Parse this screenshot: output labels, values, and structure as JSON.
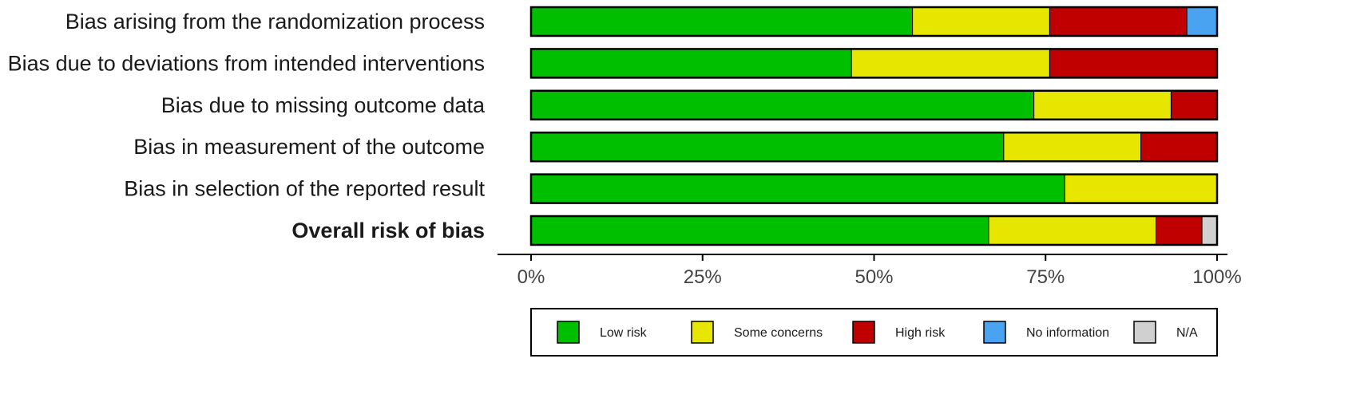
{
  "chart_data": {
    "type": "bar",
    "orientation": "horizontal",
    "stacked": true,
    "title": "",
    "xlabel": "",
    "ylabel": "",
    "xlim": [
      0,
      100
    ],
    "x_ticks": [
      "0%",
      "25%",
      "50%",
      "75%",
      "100%"
    ],
    "x_tick_values": [
      0,
      25,
      50,
      75,
      100
    ],
    "categories": [
      "Bias arising from the randomization process",
      "Bias due to deviations from intended interventions",
      "Bias due to missing outcome data",
      "Bias in measurement of the outcome",
      "Bias in selection of the reported result",
      "Overall risk of bias"
    ],
    "bold_category_index": 5,
    "series": [
      {
        "name": "Low risk",
        "color": "#00BF00",
        "values": [
          55.6,
          46.7,
          73.3,
          68.9,
          77.8,
          66.7
        ]
      },
      {
        "name": "Some concerns",
        "color": "#E6E600",
        "values": [
          20.0,
          28.9,
          20.0,
          20.0,
          22.2,
          24.4
        ]
      },
      {
        "name": "High risk",
        "color": "#C00000",
        "values": [
          20.0,
          24.4,
          6.7,
          11.1,
          0,
          6.7
        ]
      },
      {
        "name": "No information",
        "color": "#4AA3F0",
        "values": [
          4.4,
          0,
          0,
          0,
          0,
          0
        ]
      },
      {
        "name": "N/A",
        "color": "#D0D0D0",
        "values": [
          0,
          0,
          0,
          0,
          0,
          2.2
        ]
      }
    ],
    "grid": false,
    "legend_position": "bottom"
  }
}
